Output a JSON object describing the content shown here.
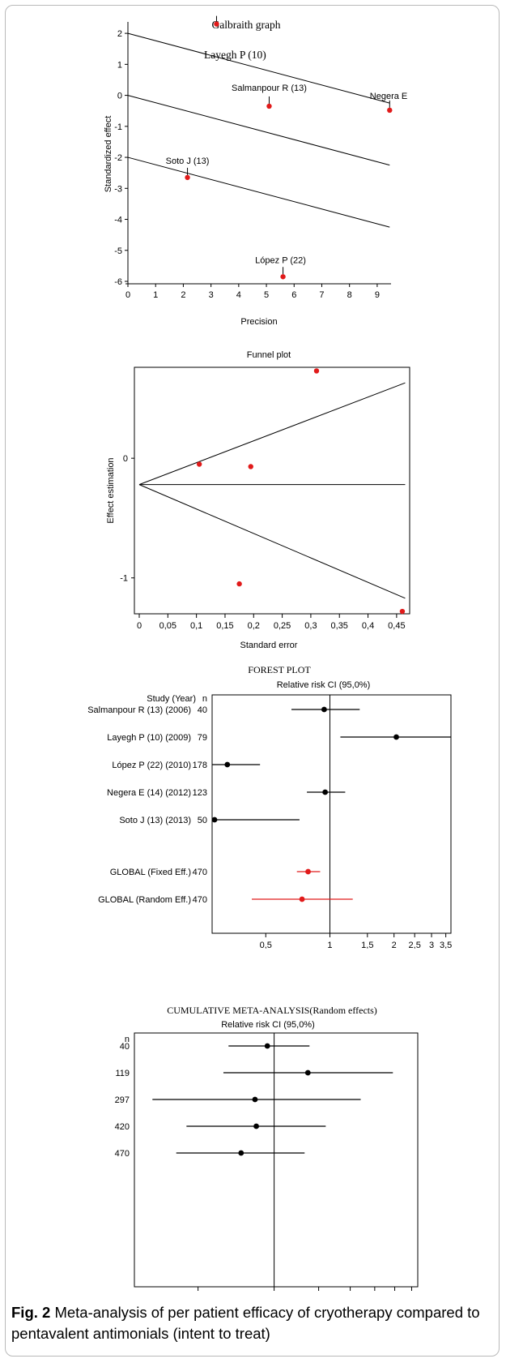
{
  "caption": {
    "label": "Fig. 2",
    "text": "Meta-analysis of per patient efficacy of cryotherapy compared to pentavalent antimonials (intent to treat)"
  },
  "chart_data": [
    {
      "id": "galbraith",
      "type": "scatter",
      "title": "Galbraith graph",
      "xlabel": "Precision",
      "ylabel": "Standardized effect",
      "xlim": [
        0,
        9.5
      ],
      "ylim": [
        -6,
        2.5
      ],
      "xticks": [
        0,
        1,
        2,
        3,
        4,
        5,
        6,
        7,
        8,
        9
      ],
      "yticks": [
        -6,
        -5,
        -4,
        -3,
        -2,
        -1,
        0,
        1,
        2
      ],
      "points": [
        {
          "label": "Layegh P (10)",
          "x": 3.2,
          "y": 2.3
        },
        {
          "label": "Salmanpour R (13)",
          "x": 5.1,
          "y": -0.35
        },
        {
          "label": "Negera E",
          "x": 9.45,
          "y": -0.48
        },
        {
          "label": "Soto J (13)",
          "x": 2.15,
          "y": -2.65
        },
        {
          "label": "López P (22)",
          "x": 5.6,
          "y": -5.85
        }
      ],
      "lines": [
        {
          "x0": 0,
          "y0": 2.0,
          "x1": 9.45,
          "y1": -0.25
        },
        {
          "x0": 0,
          "y0": 0.0,
          "x1": 9.45,
          "y1": -2.25
        },
        {
          "x0": 0,
          "y0": -2.0,
          "x1": 9.45,
          "y1": -4.25
        }
      ]
    },
    {
      "id": "funnel",
      "type": "scatter",
      "title": "Funnel plot",
      "xlabel": "Standard error",
      "ylabel": "Effect estimation",
      "xlim": [
        0,
        0.47
      ],
      "ylim": [
        -1.3,
        0.76
      ],
      "xticks": [
        "0",
        "0,05",
        "0,1",
        "0,15",
        "0,2",
        "0,25",
        "0,3",
        "0,35",
        "0,4",
        "0,45"
      ],
      "xtick_values": [
        0,
        0.05,
        0.1,
        0.15,
        0.2,
        0.25,
        0.3,
        0.35,
        0.4,
        0.45
      ],
      "yticks": [
        -1,
        0
      ],
      "points": [
        {
          "x": 0.31,
          "y": 0.73
        },
        {
          "x": 0.105,
          "y": -0.05
        },
        {
          "x": 0.195,
          "y": -0.07
        },
        {
          "x": 0.175,
          "y": -1.05
        },
        {
          "x": 0.46,
          "y": -1.28
        }
      ],
      "lines": [
        {
          "x0": 0,
          "y0": -0.22,
          "x1": 0.465,
          "y1": 0.63
        },
        {
          "x0": 0,
          "y0": -0.22,
          "x1": 0.465,
          "y1": -0.22
        },
        {
          "x0": 0,
          "y0": -0.22,
          "x1": 0.465,
          "y1": -1.17
        }
      ]
    },
    {
      "id": "forest",
      "type": "forest",
      "title": "FOREST PLOT",
      "subtitle": "Relative risk CI  (95,0%)",
      "header_study": "Study  (Year)",
      "header_n": "n",
      "xscale": "log",
      "xlim": [
        0.28,
        3.7
      ],
      "xticks": [
        "0,5",
        "1",
        "1,5",
        "2",
        "2,5",
        "3",
        "3,5"
      ],
      "xtick_values": [
        0.5,
        1,
        1.5,
        2,
        2.5,
        3,
        3.5
      ],
      "reference": 1,
      "studies": [
        {
          "label": "Salmanpour R (13) (2006)",
          "n": "40",
          "rr": 0.94,
          "lo": 0.66,
          "hi": 1.38
        },
        {
          "label": "Layegh P (10)  (2009)",
          "n": "79",
          "rr": 2.05,
          "lo": 1.12,
          "hi": 3.75
        },
        {
          "label": "López P (22)  (2010)",
          "n": "178",
          "rr": 0.33,
          "lo": 0.28,
          "hi": 0.47
        },
        {
          "label": "Negera E (14)  (2012)",
          "n": "123",
          "rr": 0.95,
          "lo": 0.78,
          "hi": 1.18
        },
        {
          "label": "Soto J (13)  (2013)",
          "n": "50",
          "rr": 0.285,
          "lo": 0.28,
          "hi": 0.72
        }
      ],
      "pooled": [
        {
          "label": "GLOBAL (Fixed Eff.)",
          "n": "470",
          "rr": 0.79,
          "lo": 0.7,
          "hi": 0.9
        },
        {
          "label": "GLOBAL (Random Eff.)",
          "n": "470",
          "rr": 0.74,
          "lo": 0.43,
          "hi": 1.28
        }
      ],
      "colors": {
        "study": "#000000",
        "pooled": "#e11a1a"
      }
    },
    {
      "id": "cumulative",
      "type": "forest",
      "title": "CUMULATIVE META-ANALYSIS(Random effects)",
      "subtitle": "Relative risk CI  (95,0%)",
      "header_n": "n",
      "xscale": "log",
      "xlim": [
        0.28,
        3.7
      ],
      "xticks": [
        "0,5",
        "1",
        "1,5",
        "2",
        "2,5",
        "3",
        "3,5"
      ],
      "xtick_values": [
        0.5,
        1,
        1.5,
        2,
        2.5,
        3,
        3.5
      ],
      "reference": 1,
      "rows": [
        {
          "n": "40",
          "rr": 0.94,
          "lo": 0.66,
          "hi": 1.38
        },
        {
          "n": "119",
          "rr": 1.36,
          "lo": 0.63,
          "hi": 2.95
        },
        {
          "n": "297",
          "rr": 0.84,
          "lo": 0.33,
          "hi": 2.2
        },
        {
          "n": "420",
          "rr": 0.85,
          "lo": 0.45,
          "hi": 1.6
        },
        {
          "n": "470",
          "rr": 0.74,
          "lo": 0.41,
          "hi": 1.32
        }
      ]
    }
  ]
}
